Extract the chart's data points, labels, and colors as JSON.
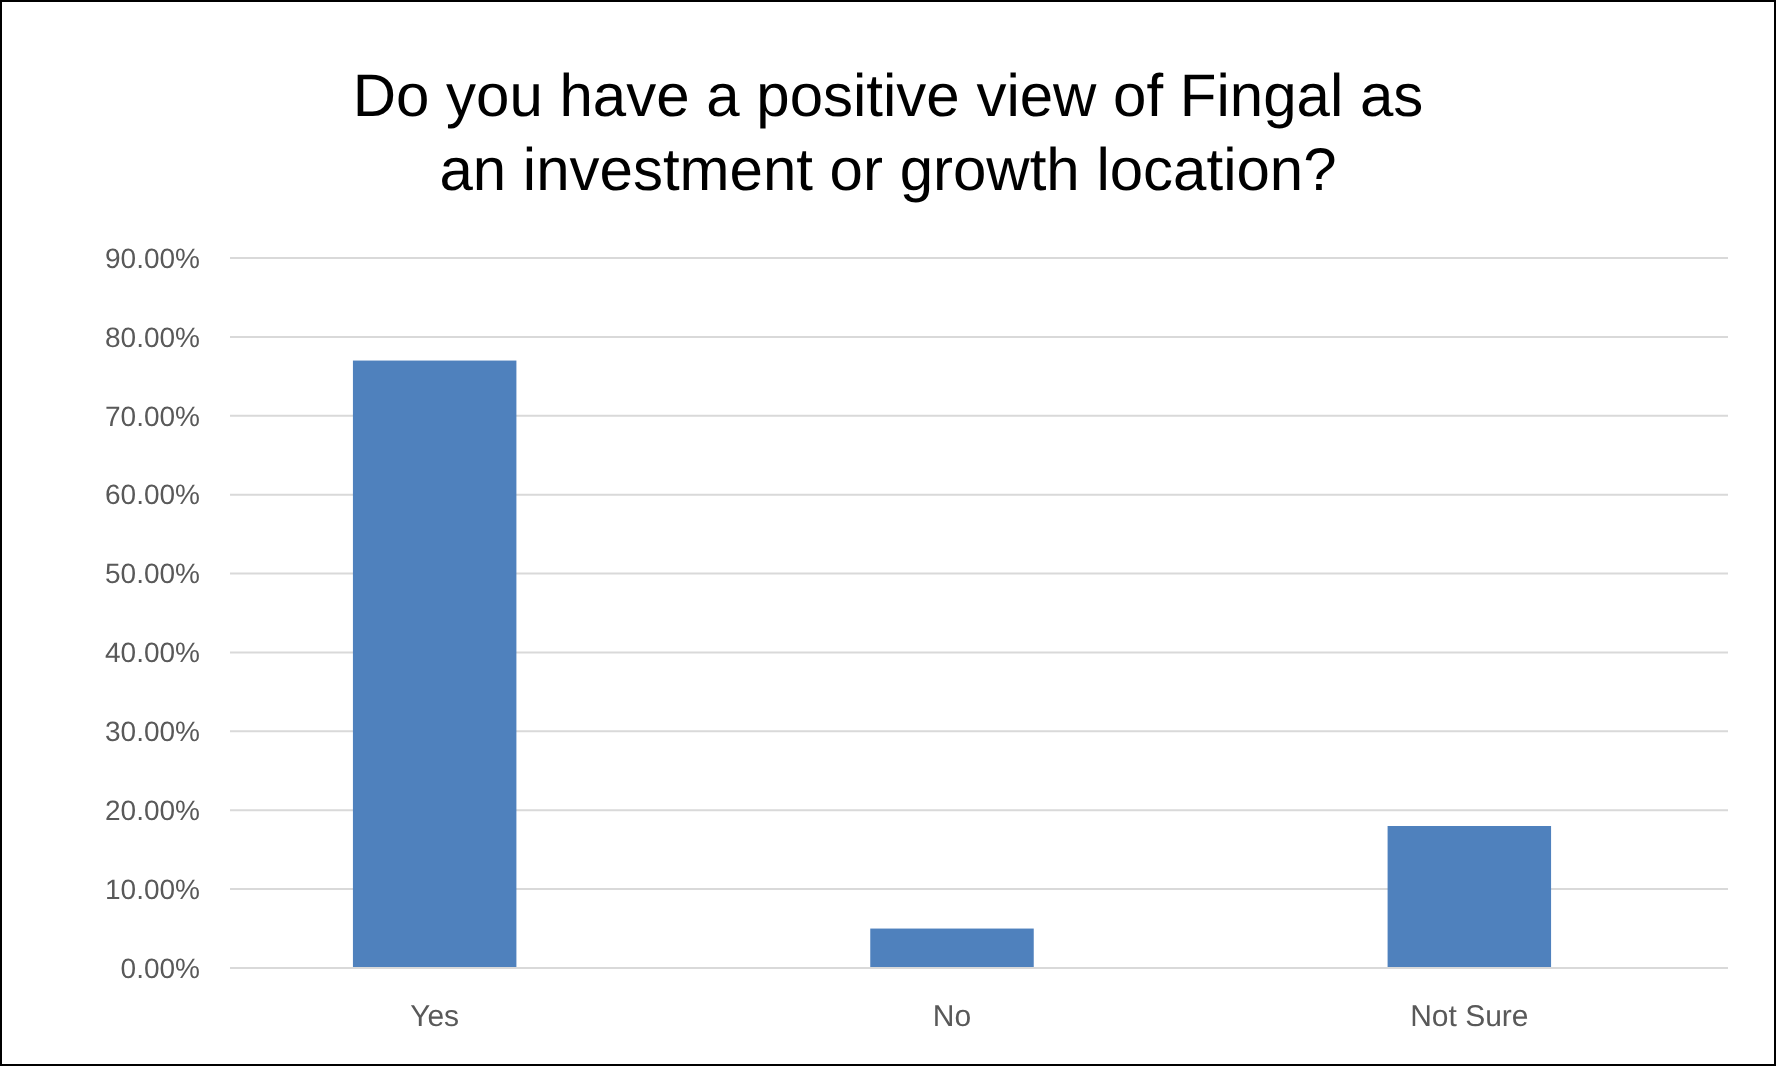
{
  "chart_data": {
    "type": "bar",
    "title": "Do you have a positive view of Fingal as an investment or growth location?",
    "categories": [
      "Yes",
      "No",
      "Not Sure"
    ],
    "values": [
      77,
      5,
      18
    ],
    "color": "#4f81bd",
    "ylim": [
      0,
      90
    ],
    "yticks": [
      {
        "value": 0,
        "label": "0.00%"
      },
      {
        "value": 10,
        "label": "10.00%"
      },
      {
        "value": 20,
        "label": "20.00%"
      },
      {
        "value": 30,
        "label": "30.00%"
      },
      {
        "value": 40,
        "label": "40.00%"
      },
      {
        "value": 50,
        "label": "50.00%"
      },
      {
        "value": 60,
        "label": "60.00%"
      },
      {
        "value": 70,
        "label": "70.00%"
      },
      {
        "value": 80,
        "label": "80.00%"
      },
      {
        "value": 90,
        "label": "90.00%"
      }
    ],
    "grid": "y"
  }
}
